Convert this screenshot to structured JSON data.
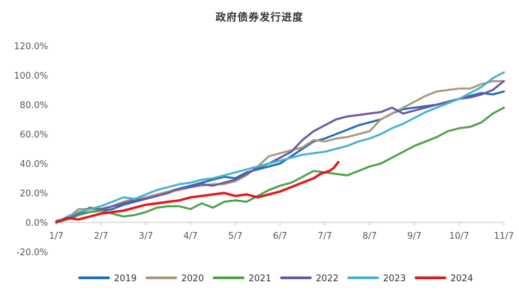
{
  "chart_data": {
    "type": "line",
    "title": "政府债券发行进度",
    "xlabel": "",
    "ylabel": "",
    "x_ticks": [
      "1/7",
      "2/7",
      "3/7",
      "4/7",
      "5/7",
      "6/7",
      "7/7",
      "8/7",
      "9/7",
      "10/7",
      "11/7"
    ],
    "y_ticks": [
      "120.0%",
      "100.0%",
      "80.0%",
      "60.0%",
      "40.0%",
      "20.0%",
      "0.0%",
      "-20.0%"
    ],
    "y_tick_values": [
      120,
      100,
      80,
      60,
      40,
      20,
      0,
      -20
    ],
    "ylim": [
      -20,
      120
    ],
    "xlim": [
      0,
      10
    ],
    "grid": false,
    "legend_position": "bottom",
    "series": [
      {
        "name": "2019",
        "color": "#1f6fb8",
        "x": [
          0,
          0.25,
          0.5,
          0.75,
          1,
          1.25,
          1.5,
          1.75,
          2,
          2.25,
          2.5,
          2.75,
          3,
          3.25,
          3.5,
          3.75,
          4,
          4.25,
          4.5,
          4.75,
          5,
          5.25,
          5.5,
          5.75,
          6,
          6.25,
          6.5,
          6.75,
          7,
          7.25,
          7.5,
          7.75,
          8,
          8.25,
          8.5,
          8.75,
          9,
          9.25,
          9.5,
          9.75,
          10
        ],
        "y": [
          0,
          3,
          6,
          7,
          8,
          9,
          12,
          14,
          16,
          18,
          21,
          23,
          25,
          27,
          29,
          31,
          30,
          34,
          36,
          38,
          40,
          45,
          50,
          55,
          57,
          60,
          63,
          66,
          68,
          70,
          74,
          77,
          78,
          79,
          80,
          82,
          84,
          86,
          88,
          87,
          89
        ]
      },
      {
        "name": "2020",
        "color": "#ab9a7c",
        "x": [
          0,
          0.25,
          0.5,
          0.75,
          1,
          1.25,
          1.5,
          1.75,
          2,
          2.25,
          2.5,
          2.75,
          3,
          3.25,
          3.5,
          3.75,
          4,
          4.25,
          4.5,
          4.75,
          5,
          5.25,
          5.5,
          5.75,
          6,
          6.25,
          6.5,
          6.75,
          7,
          7.25,
          7.5,
          7.75,
          8,
          8.25,
          8.5,
          8.75,
          9,
          9.25,
          9.5,
          9.75,
          10
        ],
        "y": [
          0,
          3,
          9,
          9,
          9,
          11,
          14,
          16,
          17,
          19,
          21,
          22,
          24,
          25,
          26,
          26,
          28,
          32,
          38,
          45,
          47,
          49,
          51,
          56,
          55,
          57,
          58,
          60,
          62,
          70,
          74,
          78,
          82,
          86,
          89,
          90,
          91,
          91,
          94,
          96,
          96
        ]
      },
      {
        "name": "2021",
        "color": "#4ea34a",
        "x": [
          0,
          0.25,
          0.5,
          0.75,
          1,
          1.25,
          1.5,
          1.75,
          2,
          2.25,
          2.5,
          2.75,
          3,
          3.25,
          3.5,
          3.75,
          4,
          4.25,
          4.5,
          4.75,
          5,
          5.25,
          5.5,
          5.75,
          6,
          6.25,
          6.5,
          6.75,
          7,
          7.25,
          7.5,
          7.75,
          8,
          8.25,
          8.5,
          8.75,
          9,
          9.25,
          9.5,
          9.75,
          10
        ],
        "y": [
          0,
          2,
          5,
          7,
          8,
          6,
          4,
          5,
          7,
          10,
          11,
          11,
          9,
          13,
          10,
          14,
          15,
          14,
          18,
          22,
          25,
          27,
          31,
          35,
          34,
          33,
          32,
          35,
          38,
          40,
          44,
          48,
          52,
          55,
          58,
          62,
          64,
          65,
          68,
          74,
          78
        ]
      },
      {
        "name": "2022",
        "color": "#6b57a5",
        "x": [
          0,
          0.25,
          0.5,
          0.75,
          1,
          1.25,
          1.5,
          1.75,
          2,
          2.25,
          2.5,
          2.75,
          3,
          3.25,
          3.5,
          3.75,
          4,
          4.25,
          4.5,
          4.75,
          5,
          5.25,
          5.5,
          5.75,
          6,
          6.25,
          6.5,
          6.75,
          7,
          7.25,
          7.5,
          7.75,
          8,
          8.25,
          8.5,
          8.75,
          9,
          9.25,
          9.5,
          9.75,
          10
        ],
        "y": [
          1,
          3,
          6,
          10,
          9,
          11,
          13,
          15,
          16,
          18,
          20,
          23,
          24,
          26,
          25,
          27,
          29,
          33,
          37,
          40,
          44,
          48,
          56,
          62,
          66,
          70,
          72,
          73,
          74,
          75,
          78,
          74,
          76,
          78,
          80,
          82,
          84,
          85,
          87,
          90,
          96
        ]
      },
      {
        "name": "2023",
        "color": "#49b3cf",
        "x": [
          0,
          0.25,
          0.5,
          0.75,
          1,
          1.25,
          1.5,
          1.75,
          2,
          2.25,
          2.5,
          2.75,
          3,
          3.25,
          3.5,
          3.75,
          4,
          4.25,
          4.5,
          4.75,
          5,
          5.25,
          5.5,
          5.75,
          6,
          6.25,
          6.5,
          6.75,
          7,
          7.25,
          7.5,
          7.75,
          8,
          8.25,
          8.5,
          8.75,
          9,
          9.25,
          9.5,
          9.75,
          10
        ],
        "y": [
          0,
          4,
          7,
          9,
          11,
          14,
          17,
          16,
          19,
          22,
          24,
          26,
          27,
          29,
          30,
          32,
          34,
          36,
          38,
          40,
          42,
          44,
          46,
          47,
          48,
          50,
          52,
          55,
          57,
          60,
          64,
          67,
          71,
          75,
          78,
          81,
          84,
          88,
          92,
          98,
          102
        ]
      },
      {
        "name": "2024",
        "color": "#e8161b",
        "x": [
          0,
          0.25,
          0.5,
          0.75,
          1,
          1.25,
          1.5,
          1.75,
          2,
          2.25,
          2.5,
          2.75,
          3,
          3.25,
          3.5,
          3.75,
          4,
          4.25,
          4.5,
          4.75,
          5,
          5.25,
          5.5,
          5.75,
          5.9,
          6.1,
          6.2,
          6.3
        ],
        "y": [
          0,
          3,
          2,
          4,
          6,
          7,
          8,
          10,
          12,
          13,
          14,
          15,
          17,
          18,
          19,
          20,
          18,
          19,
          17,
          19,
          21,
          24,
          27,
          30,
          33,
          35,
          37,
          41
        ]
      }
    ]
  }
}
